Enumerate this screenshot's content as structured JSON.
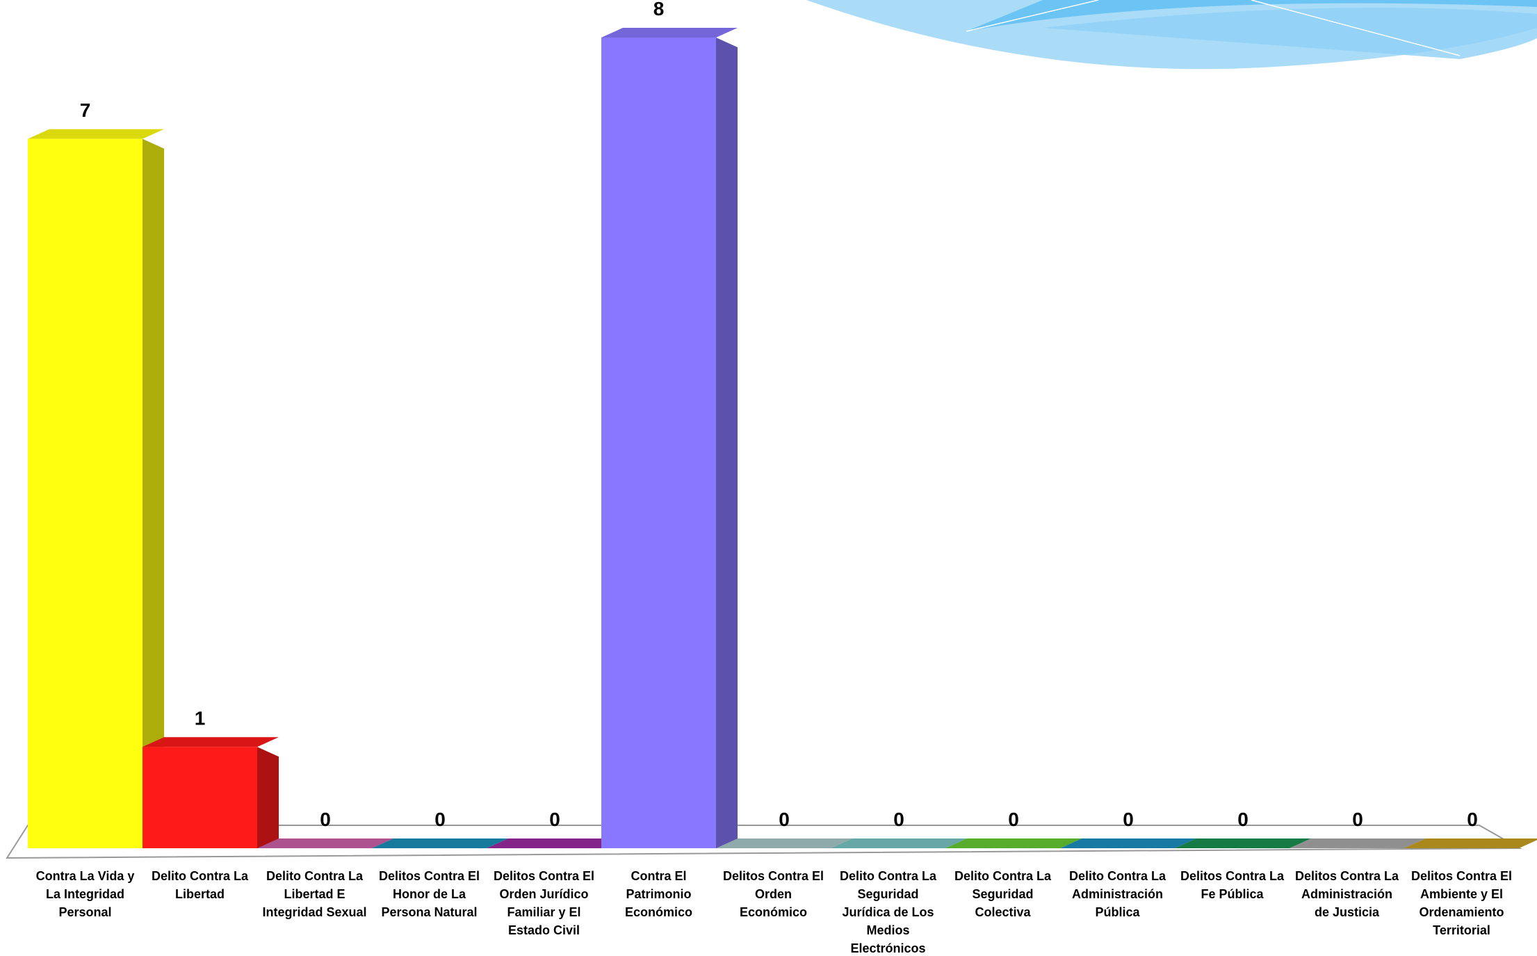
{
  "chart_data": {
    "type": "bar3d",
    "categories": [
      "Contra La Vida y La Integridad Personal",
      "Delito Contra La Libertad",
      "Delito Contra La Libertad E Integridad Sexual",
      "Delitos Contra El Honor de La Persona Natural",
      "Delitos Contra El Orden Jurídico Familiar y El Estado Civil",
      "Contra El Patrimonio Económico",
      "Delitos Contra El Orden Económico",
      "Delito Contra La Seguridad Jurídica de Los Medios Electrónicos",
      "Delito Contra La Seguridad Colectiva",
      "Delito Contra La Administración Pública",
      "Delitos Contra La Fe Pública",
      "Delitos Contra La Administración de Justicia",
      "Delitos Contra El Ambiente y El Ordenamiento Territorial"
    ],
    "values": [
      7,
      1,
      0,
      0,
      0,
      8,
      0,
      0,
      0,
      0,
      0,
      0,
      0
    ],
    "colors": [
      "#ffff10",
      "#ff1a1a",
      "#cc5fa8",
      "#1a8fb8",
      "#9b2aa0",
      "#8877ff",
      "#a8c8c8",
      "#7ac4c4",
      "#66cc33",
      "#1a8fc0",
      "#1a9050",
      "#a8a8a8",
      "#c8a020"
    ]
  }
}
